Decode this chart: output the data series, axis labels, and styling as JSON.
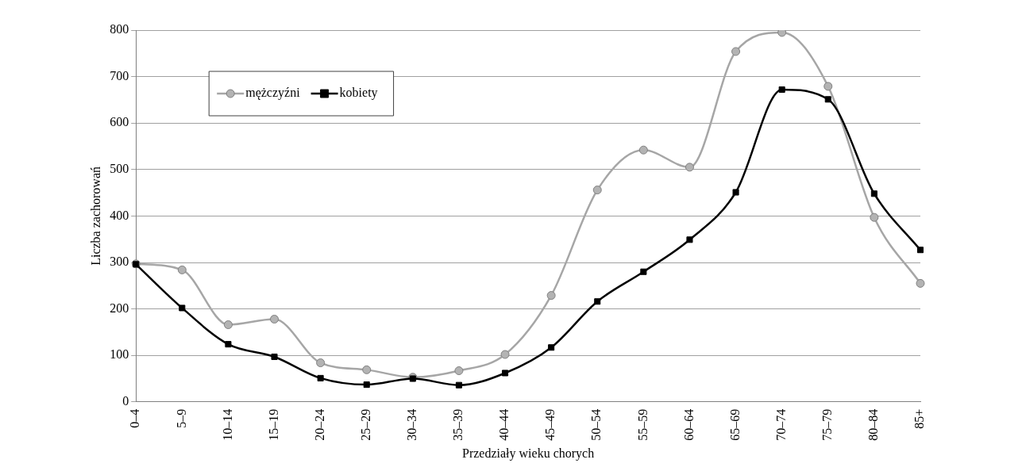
{
  "chart_data": {
    "type": "line",
    "xlabel": "Przedziały wieku chorych",
    "ylabel": "Liczba zachorowań",
    "categories": [
      "0–4",
      "5–9",
      "10–14",
      "15–19",
      "20–24",
      "25–29",
      "30–34",
      "35–39",
      "40–44",
      "45–49",
      "50–54",
      "55–59",
      "60–64",
      "65–69",
      "70–74",
      "75–79",
      "80–84",
      "85+"
    ],
    "series": [
      {
        "name": "mężczyźni",
        "color": "#a6a6a6",
        "marker": "circle",
        "values": [
          297,
          284,
          166,
          178,
          84,
          69,
          53,
          67,
          102,
          229,
          456,
          542,
          505,
          754,
          795,
          679,
          397,
          255
        ]
      },
      {
        "name": "kobiety",
        "color": "#000000",
        "marker": "square",
        "values": [
          296,
          202,
          124,
          97,
          51,
          37,
          50,
          36,
          62,
          117,
          216,
          280,
          349,
          451,
          672,
          651,
          448,
          327
        ]
      }
    ],
    "ylim": [
      0,
      800
    ],
    "yticks": [
      0,
      100,
      200,
      300,
      400,
      500,
      600,
      700,
      800
    ],
    "grid": "y",
    "legend": "top left"
  }
}
